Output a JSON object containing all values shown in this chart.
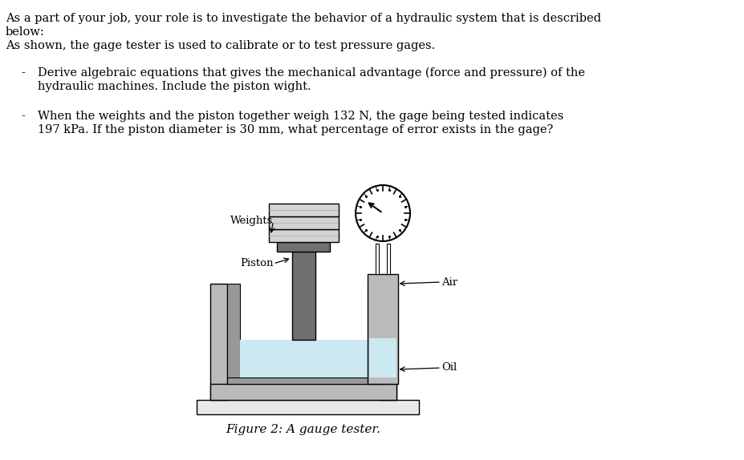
{
  "title_lines": [
    "As a part of your job, your role is to investigate the behavior of a hydraulic system that is described",
    "below:",
    "As shown, the gage tester is used to calibrate or to test pressure gages."
  ],
  "bullet1_lines": [
    "Derive algebraic equations that gives the mechanical advantage (force and pressure) of the",
    "hydraulic machines. Include the piston wight."
  ],
  "bullet2_lines": [
    "When the weights and the piston together weigh 132 N, the gage being tested indicates",
    "197 kPa. If the piston diameter is 30 mm, what percentage of error exists in the gage?"
  ],
  "fig_caption": "Figure 2: A gauge tester.",
  "bg_color": "#ffffff",
  "text_color": "#000000",
  "gray_dark": "#707070",
  "gray_med": "#999999",
  "gray_light": "#bbbbbb",
  "gray_lighter": "#d4d4d4",
  "gray_lightest": "#e8e8e8",
  "oil_color": "#cce8f0",
  "label_weights": "Weights",
  "label_piston": "Piston",
  "label_air": "Air",
  "label_oil": "Oil",
  "font": "DejaVu Serif"
}
